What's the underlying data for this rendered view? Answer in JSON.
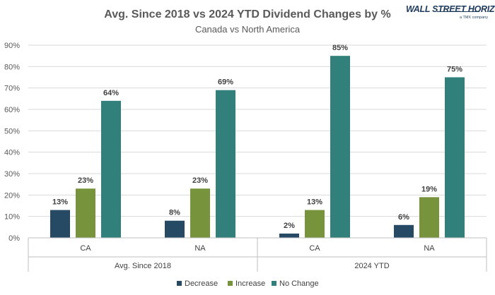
{
  "logo": {
    "main": "WALL STREET HORIZON",
    "sub": "a TMX company"
  },
  "chart_data": {
    "type": "bar",
    "title": "Avg. Since 2018 vs 2024 YTD Dividend Changes by %",
    "subtitle": "Canada vs North America",
    "xlabel": "",
    "ylabel": "",
    "ylim": [
      0,
      90
    ],
    "yticks": [
      "0%",
      "10%",
      "20%",
      "30%",
      "40%",
      "50%",
      "60%",
      "70%",
      "80%",
      "90%"
    ],
    "grid": true,
    "legend_position": "bottom",
    "groups": [
      {
        "label": "Avg. Since 2018",
        "categories": [
          "CA",
          "NA"
        ]
      },
      {
        "label": "2024 YTD",
        "categories": [
          "CA",
          "NA"
        ]
      }
    ],
    "categories": [
      "CA",
      "NA",
      "CA",
      "NA"
    ],
    "series": [
      {
        "name": "Decrease",
        "color": "#264a63",
        "values": [
          13,
          8,
          2,
          6
        ],
        "labels": [
          "13%",
          "8%",
          "2%",
          "6%"
        ]
      },
      {
        "name": "Increase",
        "color": "#77933c",
        "values": [
          23,
          23,
          13,
          19
        ],
        "labels": [
          "23%",
          "23%",
          "13%",
          "19%"
        ]
      },
      {
        "name": "No Change",
        "color": "#31807b",
        "values": [
          64,
          69,
          85,
          75
        ],
        "labels": [
          "64%",
          "69%",
          "85%",
          "75%"
        ]
      }
    ]
  }
}
